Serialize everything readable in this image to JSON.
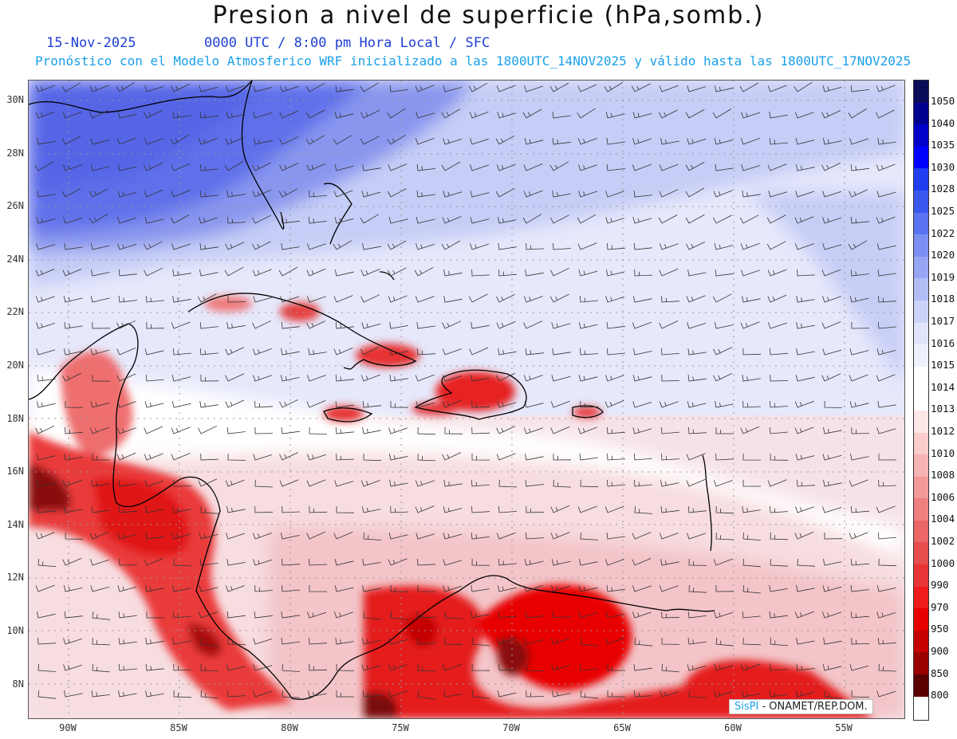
{
  "header": {
    "title": "Presion a nivel de superficie (hPa,somb.)",
    "date": "15-Nov-2025",
    "time_info": "0000 UTC / 8:00 pm Hora Local / SFC",
    "forecast_info": "Pronóstico con el Modelo Atmosferico WRF inicializado a las 1800UTC_14NOV2025 y válido hasta las  1800UTC_17NOV2025"
  },
  "map": {
    "lat_labels": [
      "30N",
      "28N",
      "26N",
      "24N",
      "22N",
      "20N",
      "18N",
      "16N",
      "14N",
      "12N",
      "10N",
      "8N"
    ],
    "lon_labels": [
      "90W",
      "85W",
      "80W",
      "75W",
      "70W",
      "65W",
      "60W",
      "55W"
    ]
  },
  "legend": {
    "levels": [
      "1050",
      "1040",
      "1035",
      "1030",
      "1028",
      "1025",
      "1022",
      "1020",
      "1019",
      "1018",
      "1017",
      "1016",
      "1015",
      "1014",
      "1013",
      "1012",
      "1010",
      "1008",
      "1006",
      "1004",
      "1002",
      "1000",
      "990",
      "970",
      "950",
      "900",
      "850",
      "800"
    ],
    "colors": [
      "#0b0b5a",
      "#00008f",
      "#0000c8",
      "#0000ff",
      "#1e3ef0",
      "#3a57ee",
      "#5a73f0",
      "#7b8ff2",
      "#97a6f4",
      "#b2bdf6",
      "#ccd3f8",
      "#e1e5fb",
      "#eef0fd",
      "#ffffff",
      "#ffffff",
      "#fde6e6",
      "#fbcccc",
      "#f7b3b3",
      "#f39999",
      "#ef8080",
      "#eb6666",
      "#e64d4d",
      "#e83434",
      "#ee1c1c",
      "#e60000",
      "#c40000",
      "#9a0000",
      "#5a0000"
    ]
  },
  "credit": {
    "brand": "SisPI",
    "text": " - ONAMET/REP.DOM."
  }
}
